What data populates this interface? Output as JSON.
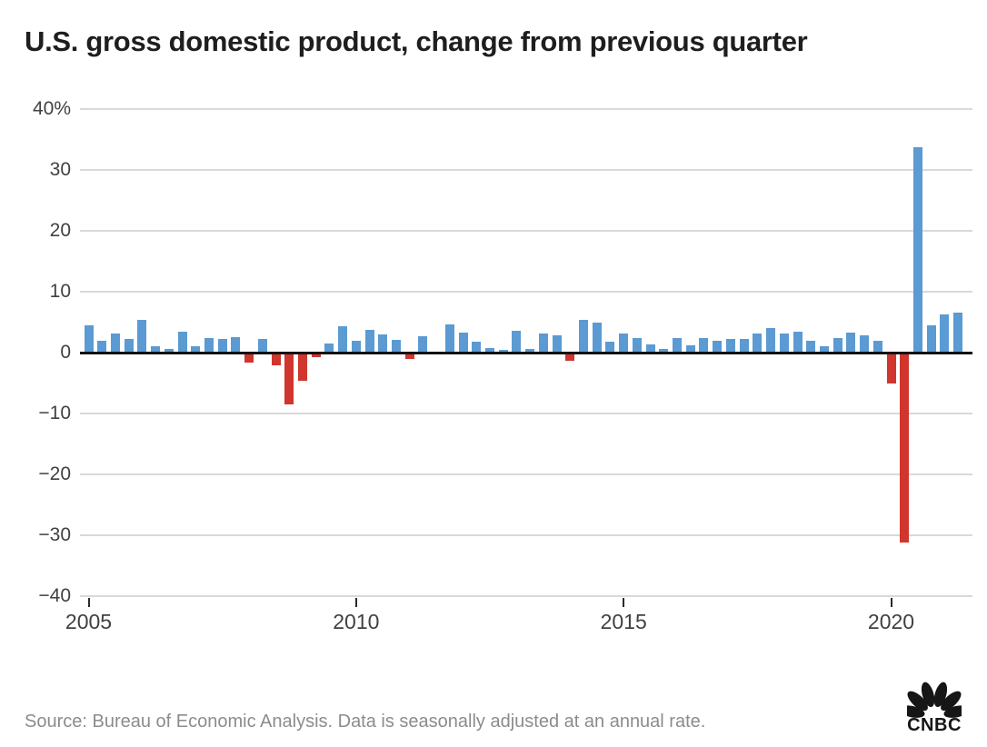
{
  "chart_data": {
    "type": "bar",
    "title": "U.S. gross domestic product, change from previous quarter",
    "categories": [
      "2005 Q1",
      "2005 Q2",
      "2005 Q3",
      "2005 Q4",
      "2006 Q1",
      "2006 Q2",
      "2006 Q3",
      "2006 Q4",
      "2007 Q1",
      "2007 Q2",
      "2007 Q3",
      "2007 Q4",
      "2008 Q1",
      "2008 Q2",
      "2008 Q3",
      "2008 Q4",
      "2009 Q1",
      "2009 Q2",
      "2009 Q3",
      "2009 Q4",
      "2010 Q1",
      "2010 Q2",
      "2010 Q3",
      "2010 Q4",
      "2011 Q1",
      "2011 Q2",
      "2011 Q3",
      "2011 Q4",
      "2012 Q1",
      "2012 Q2",
      "2012 Q3",
      "2012 Q4",
      "2013 Q1",
      "2013 Q2",
      "2013 Q3",
      "2013 Q4",
      "2014 Q1",
      "2014 Q2",
      "2014 Q3",
      "2014 Q4",
      "2015 Q1",
      "2015 Q2",
      "2015 Q3",
      "2015 Q4",
      "2016 Q1",
      "2016 Q2",
      "2016 Q3",
      "2016 Q4",
      "2017 Q1",
      "2017 Q2",
      "2017 Q3",
      "2017 Q4",
      "2018 Q1",
      "2018 Q2",
      "2018 Q3",
      "2018 Q4",
      "2019 Q1",
      "2019 Q2",
      "2019 Q3",
      "2019 Q4",
      "2020 Q1",
      "2020 Q2",
      "2020 Q3",
      "2020 Q4",
      "2021 Q1",
      "2021 Q2"
    ],
    "values": [
      4.5,
      1.9,
      3.1,
      2.3,
      5.4,
      1.0,
      0.6,
      3.5,
      1.1,
      2.4,
      2.3,
      2.5,
      -1.7,
      2.3,
      -2.1,
      -8.5,
      -4.6,
      -0.7,
      1.5,
      4.3,
      2.0,
      3.8,
      3.0,
      2.1,
      -1.0,
      2.7,
      -0.1,
      4.7,
      3.3,
      1.8,
      0.7,
      0.5,
      3.6,
      0.6,
      3.2,
      2.9,
      -1.4,
      5.3,
      4.9,
      1.8,
      3.2,
      2.4,
      1.3,
      0.6,
      2.4,
      1.2,
      2.4,
      2.0,
      2.3,
      2.3,
      3.1,
      4.0,
      3.2,
      3.5,
      2.0,
      1.0,
      2.4,
      3.3,
      2.9,
      1.9,
      -5.1,
      -31.2,
      33.8,
      4.5,
      6.3,
      6.6
    ],
    "unit": "%",
    "xlabel": "",
    "ylabel": "",
    "ylim": [
      -40,
      40
    ],
    "grid": true,
    "legend": "none",
    "y_axis": {
      "ticks": [
        {
          "value": 40,
          "label": "40%"
        },
        {
          "value": 30,
          "label": "30"
        },
        {
          "value": 20,
          "label": "20"
        },
        {
          "value": 10,
          "label": "10"
        },
        {
          "value": 0,
          "label": "0"
        },
        {
          "value": -10,
          "label": "−10"
        },
        {
          "value": -20,
          "label": "−20"
        },
        {
          "value": -30,
          "label": "−30"
        },
        {
          "value": -40,
          "label": "−40"
        }
      ]
    },
    "x_axis": {
      "ticks": [
        {
          "year": 2005,
          "label": "2005"
        },
        {
          "year": 2010,
          "label": "2010"
        },
        {
          "year": 2015,
          "label": "2015"
        },
        {
          "year": 2020,
          "label": "2020"
        }
      ]
    },
    "colors": {
      "positive": "#5b9ad2",
      "negative": "#d0352e",
      "grid": "#d9d9d9",
      "zero_line": "#121212"
    }
  },
  "footer": {
    "source": "Source: Bureau of Economic Analysis. Data is seasonally adjusted at an annual rate.",
    "logo_text": "CNBC"
  }
}
